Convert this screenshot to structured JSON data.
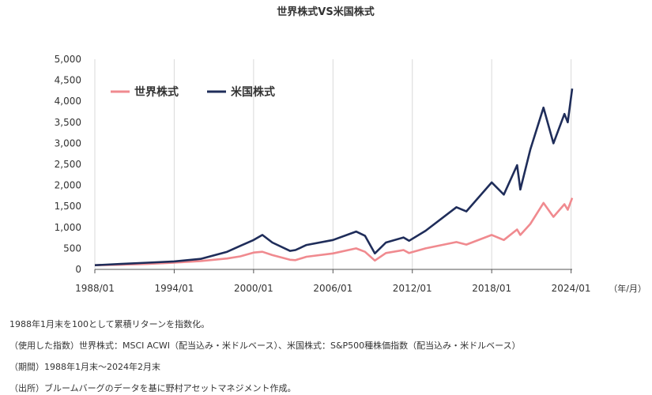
{
  "chart_data": {
    "type": "line",
    "title": "世界株式VS米国株式",
    "xlabel": "",
    "ylabel": "",
    "x_unit": "（年/月）",
    "x_range": [
      "1988/01",
      "2024/02"
    ],
    "ylim": [
      0,
      5000
    ],
    "yticks": [
      "0",
      "500",
      "1,000",
      "1,500",
      "2,000",
      "2,500",
      "3,000",
      "3,500",
      "4,000",
      "4,500",
      "5,000"
    ],
    "xticks": [
      "1988/01",
      "1994/01",
      "2000/01",
      "2006/01",
      "2012/01",
      "2018/01",
      "2024/01"
    ],
    "grid": "vertical",
    "legend": "top-left",
    "series": [
      {
        "name": "世界株式",
        "color": "#f08a8f",
        "points": [
          [
            "1988/01",
            100
          ],
          [
            "1990/01",
            110
          ],
          [
            "1992/01",
            130
          ],
          [
            "1994/01",
            160
          ],
          [
            "1996/01",
            200
          ],
          [
            "1998/01",
            260
          ],
          [
            "1999/01",
            310
          ],
          [
            "2000/01",
            400
          ],
          [
            "2000/09",
            420
          ],
          [
            "2001/06",
            340
          ],
          [
            "2002/10",
            230
          ],
          [
            "2003/03",
            220
          ],
          [
            "2004/01",
            300
          ],
          [
            "2006/01",
            380
          ],
          [
            "2007/10",
            500
          ],
          [
            "2008/06",
            420
          ],
          [
            "2009/03",
            210
          ],
          [
            "2010/01",
            390
          ],
          [
            "2011/05",
            460
          ],
          [
            "2011/10",
            390
          ],
          [
            "2013/01",
            500
          ],
          [
            "2015/05",
            650
          ],
          [
            "2016/02",
            590
          ],
          [
            "2018/01",
            820
          ],
          [
            "2018/12",
            700
          ],
          [
            "2019/12",
            950
          ],
          [
            "2020/03",
            820
          ],
          [
            "2020/12",
            1080
          ],
          [
            "2021/12",
            1580
          ],
          [
            "2022/09",
            1250
          ],
          [
            "2023/07",
            1550
          ],
          [
            "2023/10",
            1420
          ],
          [
            "2024/02",
            1700
          ]
        ]
      },
      {
        "name": "米国株式",
        "color": "#1f2d5a",
        "points": [
          [
            "1988/01",
            100
          ],
          [
            "1990/01",
            130
          ],
          [
            "1992/01",
            160
          ],
          [
            "1994/01",
            190
          ],
          [
            "1996/01",
            250
          ],
          [
            "1998/01",
            420
          ],
          [
            "1999/01",
            560
          ],
          [
            "2000/01",
            700
          ],
          [
            "2000/09",
            820
          ],
          [
            "2001/06",
            640
          ],
          [
            "2002/10",
            440
          ],
          [
            "2003/03",
            460
          ],
          [
            "2004/01",
            580
          ],
          [
            "2006/01",
            700
          ],
          [
            "2007/10",
            900
          ],
          [
            "2008/06",
            800
          ],
          [
            "2009/03",
            380
          ],
          [
            "2010/01",
            640
          ],
          [
            "2011/05",
            760
          ],
          [
            "2011/10",
            680
          ],
          [
            "2013/01",
            920
          ],
          [
            "2015/05",
            1480
          ],
          [
            "2016/02",
            1380
          ],
          [
            "2018/01",
            2070
          ],
          [
            "2018/12",
            1780
          ],
          [
            "2019/12",
            2480
          ],
          [
            "2020/03",
            1900
          ],
          [
            "2020/12",
            2850
          ],
          [
            "2021/12",
            3850
          ],
          [
            "2022/09",
            3000
          ],
          [
            "2023/07",
            3700
          ],
          [
            "2023/10",
            3500
          ],
          [
            "2024/02",
            4300
          ]
        ]
      }
    ]
  },
  "notes": [
    "1988年1月末を100として累積リターンを指数化。",
    "（使用した指数）世界株式：MSCI ACWI（配当込み・米ドルベース）、米国株式：S&P500種株価指数（配当込み・米ドルベース）",
    "（期間）1988年1月末～2024年2月末",
    "（出所）ブルームバーグのデータを基に野村アセットマネジメント作成。"
  ]
}
